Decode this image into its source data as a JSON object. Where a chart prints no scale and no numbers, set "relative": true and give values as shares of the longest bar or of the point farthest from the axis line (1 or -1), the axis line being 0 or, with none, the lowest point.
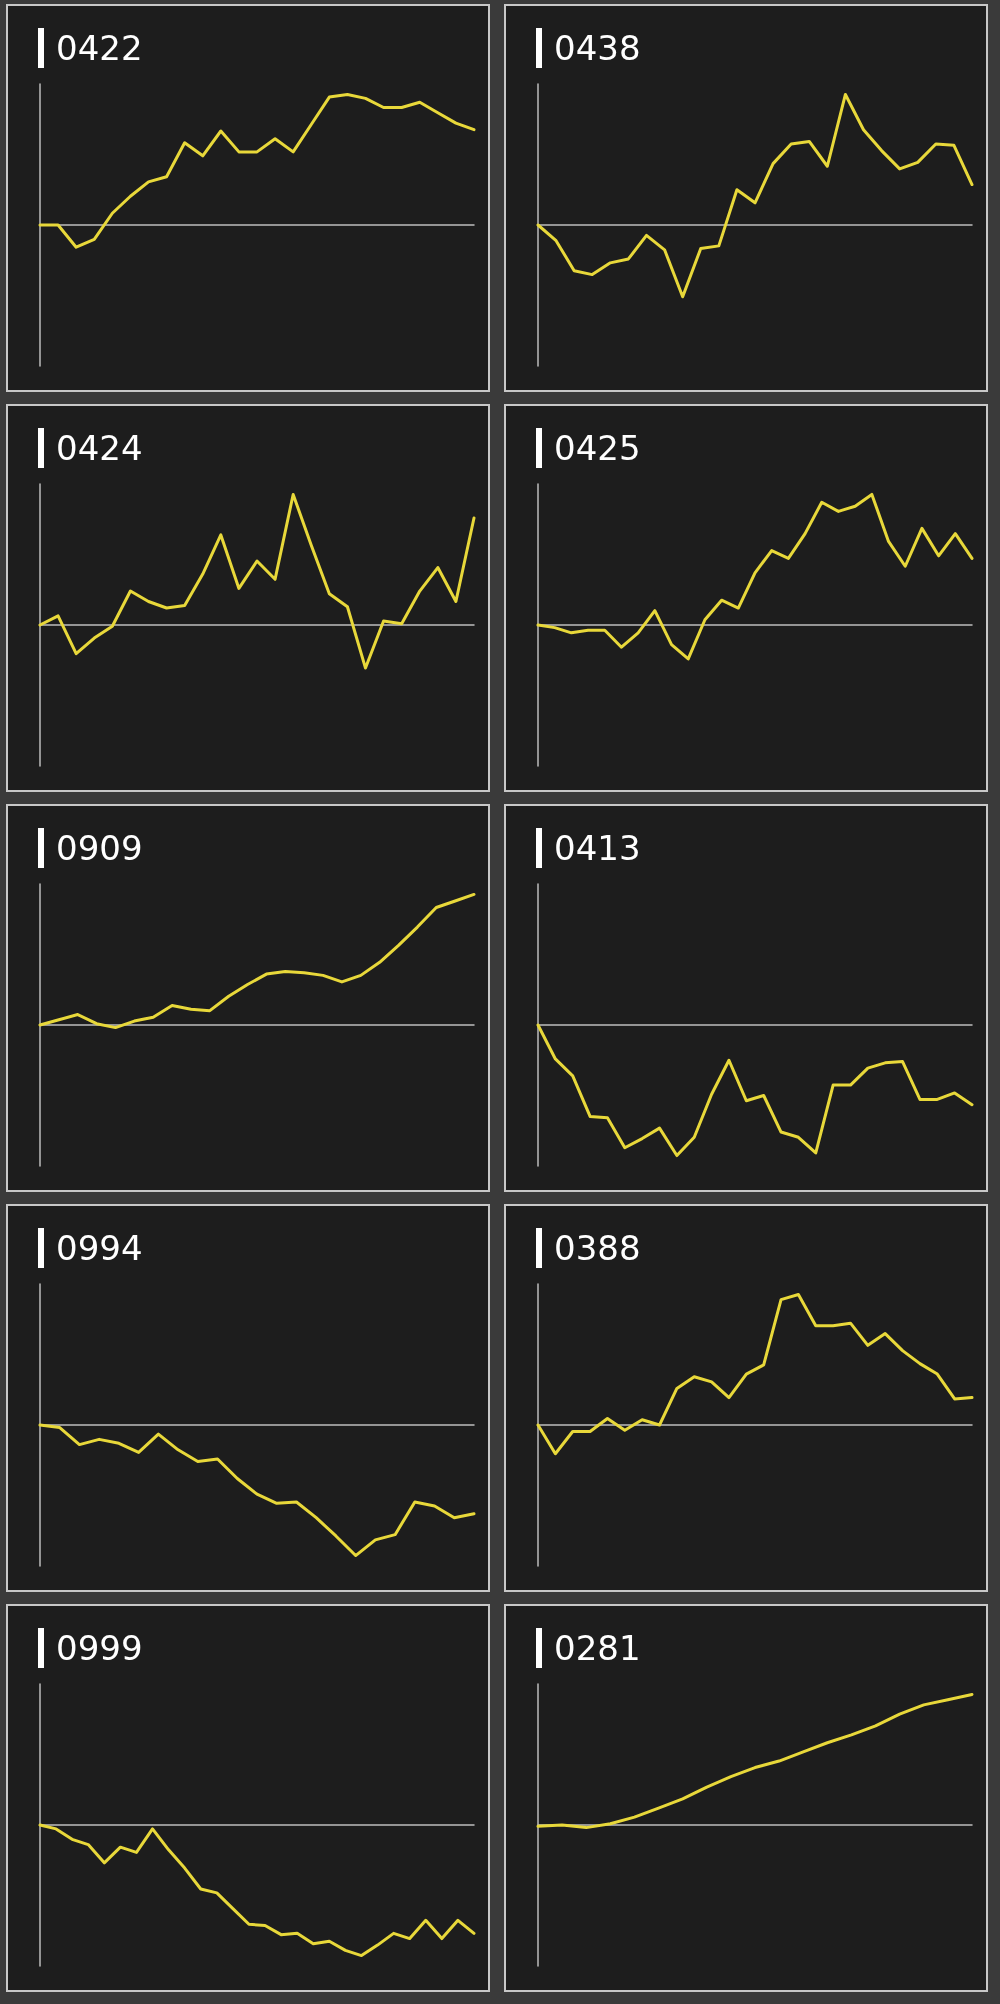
{
  "chart_data": [
    {
      "type": "line",
      "title": "0422",
      "relative": true,
      "marker": "none",
      "categories": [
        null,
        null,
        null,
        null,
        null,
        null,
        null,
        null,
        null,
        null,
        null,
        null,
        null,
        null,
        null,
        null,
        null,
        null,
        null,
        null,
        null,
        null,
        null,
        null,
        null
      ],
      "series": [
        {
          "color": "#e8d83a",
          "values": [
            0,
            0,
            -0.17,
            -0.11,
            0.09,
            0.22,
            0.33,
            0.37,
            0.63,
            0.53,
            0.72,
            0.56,
            0.56,
            0.66,
            0.56,
            0.77,
            0.98,
            1,
            0.97,
            0.9,
            0.9,
            0.94,
            0.86,
            0.78,
            0.73
          ]
        }
      ]
    },
    {
      "type": "line",
      "title": "0438",
      "relative": true,
      "marker": "none",
      "categories": [
        null,
        null,
        null,
        null,
        null,
        null,
        null,
        null,
        null,
        null,
        null,
        null,
        null,
        null,
        null,
        null,
        null,
        null,
        null,
        null,
        null,
        null,
        null,
        null,
        null
      ],
      "series": [
        {
          "color": "#e8d83a",
          "values": [
            0,
            -0.12,
            -0.35,
            -0.38,
            -0.29,
            -0.26,
            -0.08,
            -0.19,
            -0.55,
            -0.18,
            -0.16,
            0.27,
            0.17,
            0.47,
            0.62,
            0.64,
            0.45,
            1,
            0.73,
            0.57,
            0.43,
            0.48,
            0.62,
            0.61,
            0.31
          ]
        }
      ]
    },
    {
      "type": "line",
      "title": "0424",
      "relative": true,
      "marker": "none",
      "categories": [
        null,
        null,
        null,
        null,
        null,
        null,
        null,
        null,
        null,
        null,
        null,
        null,
        null,
        null,
        null,
        null,
        null,
        null,
        null,
        null,
        null,
        null,
        null,
        null,
        null
      ],
      "series": [
        {
          "color": "#e8d83a",
          "values": [
            0,
            0.07,
            -0.22,
            -0.1,
            -0.01,
            0.26,
            0.18,
            0.13,
            0.15,
            0.39,
            0.69,
            0.28,
            0.49,
            0.35,
            1,
            0.61,
            0.24,
            0.14,
            -0.33,
            0.03,
            0.01,
            0.26,
            0.44,
            0.18,
            0.82
          ]
        }
      ]
    },
    {
      "type": "line",
      "title": "0425",
      "relative": true,
      "marker": "none",
      "categories": [
        null,
        null,
        null,
        null,
        null,
        null,
        null,
        null,
        null,
        null,
        null,
        null,
        null,
        null,
        null,
        null,
        null,
        null,
        null,
        null,
        null,
        null,
        null,
        null,
        null,
        null,
        null
      ],
      "series": [
        {
          "color": "#e8d83a",
          "values": [
            0,
            -0.02,
            -0.06,
            -0.04,
            -0.04,
            -0.17,
            -0.06,
            0.11,
            -0.15,
            -0.26,
            0.04,
            0.19,
            0.13,
            0.4,
            0.57,
            0.51,
            0.7,
            0.94,
            0.87,
            0.91,
            1,
            0.64,
            0.45,
            0.74,
            0.53,
            0.7,
            0.51
          ]
        }
      ]
    },
    {
      "type": "line",
      "title": "0909",
      "relative": true,
      "marker": "none",
      "categories": [
        null,
        null,
        null,
        null,
        null,
        null,
        null,
        null,
        null,
        null,
        null,
        null,
        null,
        null,
        null,
        null,
        null,
        null,
        null,
        null,
        null,
        null,
        null,
        null
      ],
      "series": [
        {
          "color": "#e8d83a",
          "values": [
            0,
            0.04,
            0.08,
            0.01,
            -0.02,
            0.03,
            0.06,
            0.15,
            0.12,
            0.11,
            0.22,
            0.31,
            0.39,
            0.41,
            0.4,
            0.38,
            0.33,
            0.38,
            0.48,
            0.61,
            0.75,
            0.9,
            0.95,
            1
          ]
        }
      ]
    },
    {
      "type": "line",
      "title": "0413",
      "relative": true,
      "marker": "none",
      "categories": [
        null,
        null,
        null,
        null,
        null,
        null,
        null,
        null,
        null,
        null,
        null,
        null,
        null,
        null,
        null,
        null,
        null,
        null,
        null,
        null,
        null,
        null,
        null,
        null,
        null,
        null
      ],
      "series": [
        {
          "color": "#e8d83a",
          "values": [
            0,
            -0.26,
            -0.39,
            -0.7,
            -0.71,
            -0.94,
            -0.87,
            -0.79,
            -1,
            -0.86,
            -0.53,
            -0.27,
            -0.58,
            -0.54,
            -0.82,
            -0.86,
            -0.98,
            -0.46,
            -0.46,
            -0.33,
            -0.29,
            -0.28,
            -0.57,
            -0.57,
            -0.52,
            -0.61
          ]
        }
      ]
    },
    {
      "type": "line",
      "title": "0994",
      "relative": true,
      "marker": "none",
      "categories": [
        null,
        null,
        null,
        null,
        null,
        null,
        null,
        null,
        null,
        null,
        null,
        null,
        null,
        null,
        null,
        null,
        null,
        null,
        null,
        null,
        null,
        null,
        null
      ],
      "series": [
        {
          "color": "#e8d83a",
          "values": [
            0,
            -0.02,
            -0.15,
            -0.11,
            -0.14,
            -0.21,
            -0.07,
            -0.19,
            -0.28,
            -0.26,
            -0.41,
            -0.53,
            -0.6,
            -0.59,
            -0.71,
            -0.85,
            -1,
            -0.88,
            -0.84,
            -0.59,
            -0.62,
            -0.71,
            -0.68
          ]
        }
      ]
    },
    {
      "type": "line",
      "title": "0388",
      "relative": true,
      "marker": "none",
      "categories": [
        null,
        null,
        null,
        null,
        null,
        null,
        null,
        null,
        null,
        null,
        null,
        null,
        null,
        null,
        null,
        null,
        null,
        null,
        null,
        null,
        null,
        null,
        null,
        null,
        null,
        null
      ],
      "series": [
        {
          "color": "#e8d83a",
          "values": [
            0,
            -0.22,
            -0.05,
            -0.05,
            0.05,
            -0.04,
            0.04,
            0,
            0.28,
            0.37,
            0.33,
            0.21,
            0.39,
            0.46,
            0.96,
            1,
            0.76,
            0.76,
            0.78,
            0.61,
            0.7,
            0.57,
            0.47,
            0.39,
            0.2,
            0.21
          ]
        }
      ]
    },
    {
      "type": "line",
      "title": "0999",
      "relative": true,
      "marker": "none",
      "categories": [
        null,
        null,
        null,
        null,
        null,
        null,
        null,
        null,
        null,
        null,
        null,
        null,
        null,
        null,
        null,
        null,
        null,
        null,
        null,
        null,
        null,
        null,
        null,
        null,
        null,
        null,
        null,
        null
      ],
      "series": [
        {
          "color": "#e8d83a",
          "values": [
            0,
            -0.03,
            -0.11,
            -0.15,
            -0.29,
            -0.17,
            -0.21,
            -0.03,
            -0.19,
            -0.33,
            -0.49,
            -0.52,
            -0.64,
            -0.76,
            -0.77,
            -0.84,
            -0.83,
            -0.91,
            -0.89,
            -0.96,
            -1,
            -0.92,
            -0.83,
            -0.87,
            -0.73,
            -0.87,
            -0.73,
            -0.83
          ]
        }
      ]
    },
    {
      "type": "line",
      "title": "0281",
      "relative": true,
      "marker": "none",
      "categories": [
        null,
        null,
        null,
        null,
        null,
        null,
        null,
        null,
        null,
        null,
        null,
        null,
        null,
        null,
        null,
        null,
        null,
        null,
        null
      ],
      "series": [
        {
          "color": "#e8d83a",
          "values": [
            -0.01,
            0,
            -0.02,
            0.01,
            0.06,
            0.13,
            0.2,
            0.29,
            0.37,
            0.44,
            0.49,
            0.56,
            0.63,
            0.69,
            0.76,
            0.85,
            0.92,
            0.96,
            1
          ]
        }
      ]
    }
  ]
}
